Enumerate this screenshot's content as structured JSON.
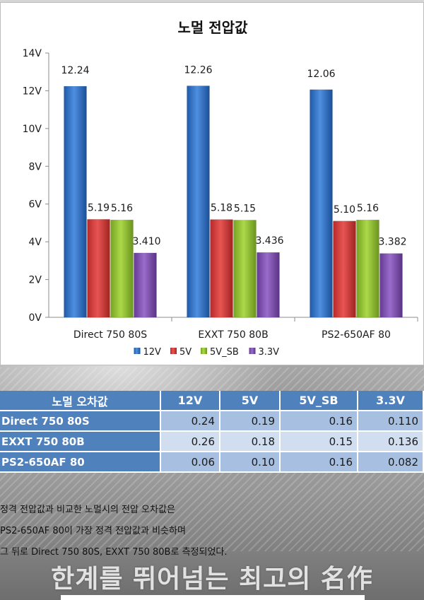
{
  "chart_data": {
    "type": "bar",
    "title": "노멀 전압값",
    "categories": [
      "Direct 750 80S",
      "EXXT 750 80B",
      "PS2-650AF 80"
    ],
    "series": [
      {
        "name": "12V",
        "values": [
          12.24,
          12.26,
          12.06
        ],
        "labels": [
          "12.24",
          "12.26",
          "12.06"
        ],
        "color": "#2e6fc8"
      },
      {
        "name": "5V",
        "values": [
          5.19,
          5.18,
          5.1
        ],
        "labels": [
          "5.19",
          "5.18",
          "5.10"
        ],
        "color": "#d23b39"
      },
      {
        "name": "5V_SB",
        "values": [
          5.16,
          5.15,
          5.16
        ],
        "labels": [
          "5.16",
          "5.15",
          "5.16"
        ],
        "color": "#93c02f"
      },
      {
        "name": "3.3V",
        "values": [
          3.41,
          3.436,
          3.382
        ],
        "labels": [
          "3.410",
          "3.436",
          "3.382"
        ],
        "color": "#7f4fb0"
      }
    ],
    "yticks": [
      "0V",
      "2V",
      "4V",
      "6V",
      "8V",
      "10V",
      "12V",
      "14V"
    ],
    "ylim": [
      0,
      14
    ],
    "legend_position": "bottom",
    "grid": false
  },
  "table": {
    "header": [
      "노멀 오차값",
      "12V",
      "5V",
      "5V_SB",
      "3.3V"
    ],
    "rows": [
      {
        "name": "Direct 750 80S",
        "values": [
          "0.24",
          "0.19",
          "0.16",
          "0.110"
        ]
      },
      {
        "name": "EXXT 750 80B",
        "values": [
          "0.26",
          "0.18",
          "0.15",
          "0.136"
        ]
      },
      {
        "name": "PS2-650AF 80",
        "values": [
          "0.06",
          "0.10",
          "0.16",
          "0.082"
        ]
      }
    ]
  },
  "description": {
    "lines": [
      "정격 전압값과 비교한 노멀시의 전압 오차값은",
      "PS2-650AF 80이 가장 정격 전압값과 비슷하며",
      "그 뒤로 Direct 750 80S, EXXT 750 80B로 측정되었다."
    ]
  },
  "slogan": "한계를 뛰어넘는 최고의 名作"
}
